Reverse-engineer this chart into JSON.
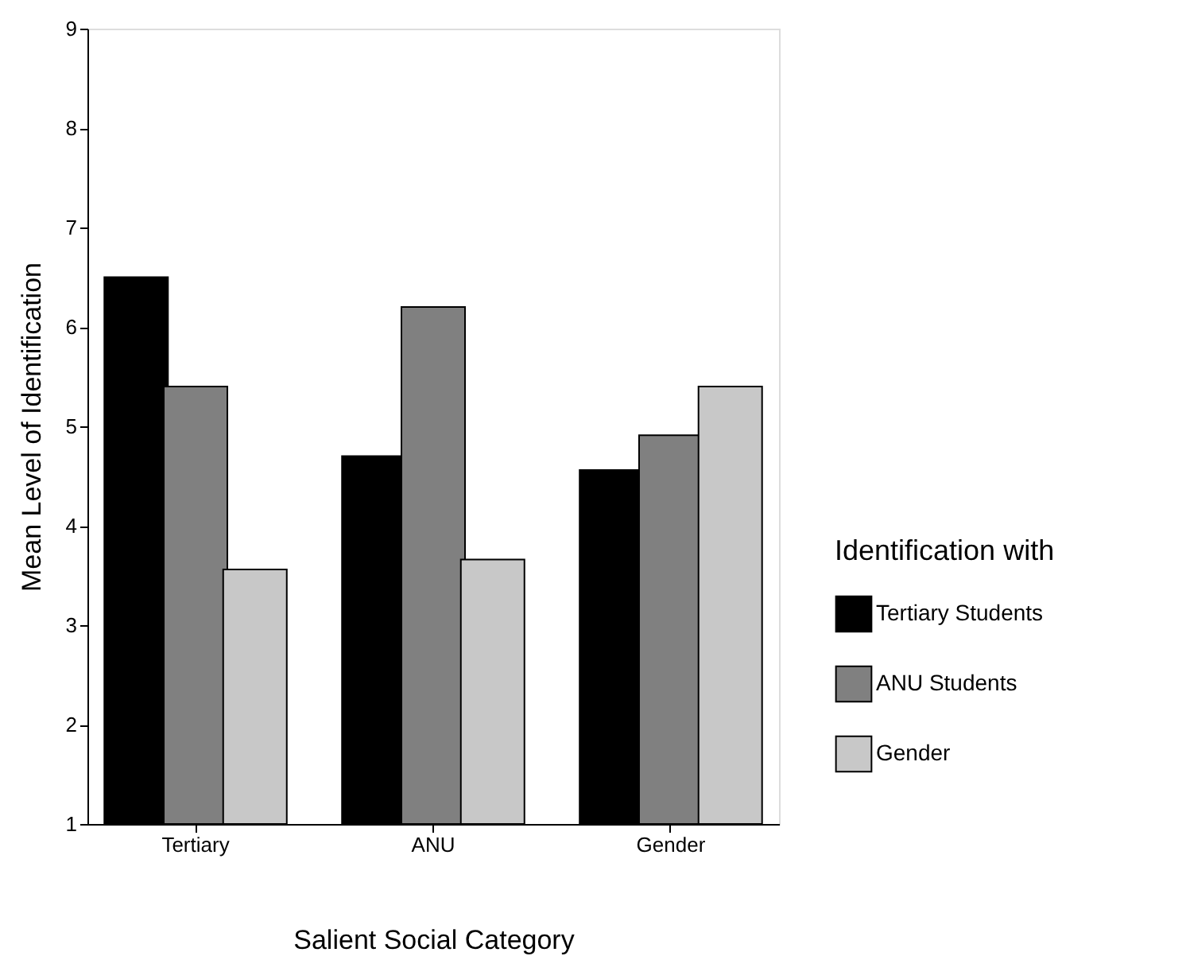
{
  "chart_data": {
    "type": "bar",
    "xlabel": "Salient Social Category",
    "ylabel": "Mean Level of Identification",
    "legend_title": "Identification with",
    "categories": [
      "Tertiary",
      "ANU",
      "Gender"
    ],
    "series": [
      {
        "name": "Tertiary Students",
        "color": "#000000",
        "values": [
          6.5,
          4.7,
          4.56
        ]
      },
      {
        "name": "ANU Students",
        "color": "#808080",
        "values": [
          5.4,
          6.2,
          4.91
        ]
      },
      {
        "name": "Gender",
        "color": "#c8c8c8",
        "values": [
          3.56,
          3.66,
          5.4
        ]
      }
    ],
    "ylim": [
      1,
      9
    ],
    "yticks": [
      1,
      2,
      3,
      4,
      5,
      6,
      7,
      8,
      9
    ],
    "grid": false,
    "legend": "right"
  }
}
